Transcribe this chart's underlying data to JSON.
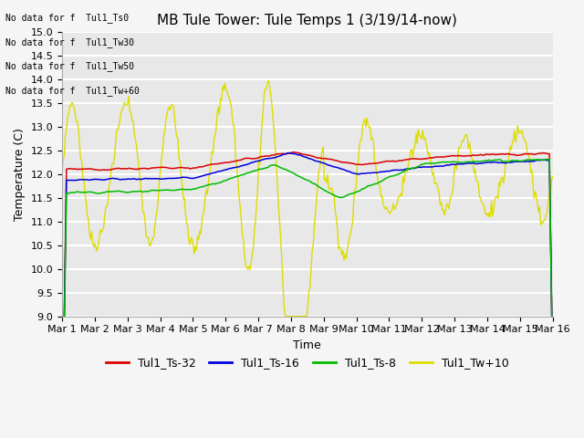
{
  "title": "MB Tule Tower: Tule Temps 1 (3/19/14-now)",
  "xlabel": "Time",
  "ylabel": "Temperature (C)",
  "ylim": [
    9.0,
    15.0
  ],
  "yticks": [
    9.0,
    9.5,
    10.0,
    10.5,
    11.0,
    11.5,
    12.0,
    12.5,
    13.0,
    13.5,
    14.0,
    14.5,
    15.0
  ],
  "xtick_labels": [
    "Mar 1",
    "Mar 2",
    "Mar 3",
    "Mar 4",
    "Mar 5",
    "Mar 6",
    "Mar 7",
    "Mar 8",
    "Mar 9",
    "Mar 10",
    "Mar 11",
    "Mar 12",
    "Mar 13",
    "Mar 14",
    "Mar 15",
    "Mar 16"
  ],
  "legend_entries": [
    {
      "label": "Tul1_Ts-32",
      "color": "#dd0000"
    },
    {
      "label": "Tul1_Ts-16",
      "color": "#0000dd"
    },
    {
      "label": "Tul1_Ts-8",
      "color": "#00bb00"
    },
    {
      "label": "Tul1_Tw+10",
      "color": "#dddd00"
    }
  ],
  "no_data_text": [
    "No data for f  Tul1_Ts0",
    "No data for f  Tul1_Tw30",
    "No data for f  Tul1_Tw50",
    "No data for f  Tul1_Tw+60"
  ],
  "background_color": "#e8e8e8",
  "grid_color": "#ffffff",
  "title_fontsize": 11,
  "axis_fontsize": 9,
  "tick_fontsize": 8,
  "legend_fontsize": 9
}
